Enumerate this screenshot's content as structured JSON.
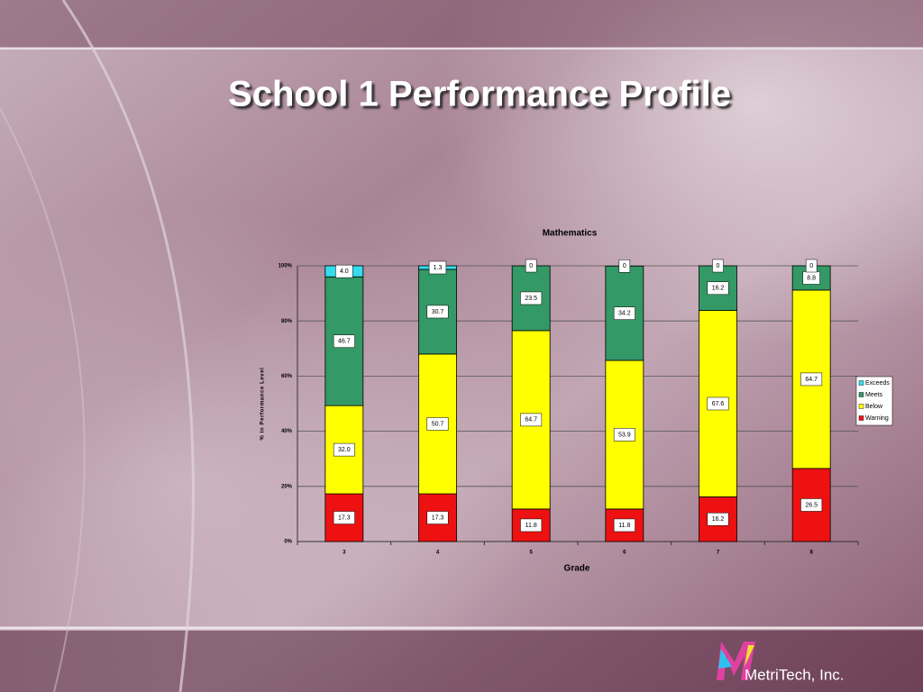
{
  "slide": {
    "title": "School 1 Performance Profile",
    "logo": "MetriTech, Inc."
  },
  "chart_data": {
    "type": "stacked_bar",
    "title": "Mathematics",
    "x_label": "Grade",
    "y_label": "% in Performance Level",
    "categories": [
      "3",
      "4",
      "5",
      "6",
      "7",
      "8"
    ],
    "series": [
      {
        "name": "Warning",
        "color": "#ee1111",
        "values": [
          17.3,
          17.3,
          11.8,
          11.8,
          16.2,
          26.5
        ],
        "value_labels": [
          "17.3",
          "17.3",
          "11.8",
          "11.8",
          "16.2",
          "26.5"
        ]
      },
      {
        "name": "Below",
        "color": "#ffff00",
        "values": [
          32.0,
          50.7,
          64.7,
          53.9,
          67.6,
          64.7
        ],
        "value_labels": [
          "32.0",
          "50.7",
          "64.7",
          "53.9",
          "67.6",
          "64.7"
        ]
      },
      {
        "name": "Meets",
        "color": "#339966",
        "values": [
          46.7,
          30.7,
          23.5,
          34.2,
          16.2,
          8.8
        ],
        "value_labels": [
          "46.7",
          "30.7",
          "23.5",
          "34.2",
          "16.2",
          "8.8"
        ]
      },
      {
        "name": "Exceeds",
        "color": "#33ddee",
        "values": [
          4.0,
          1.3,
          0,
          0,
          0,
          0
        ],
        "value_labels": [
          "4.0",
          "1.3",
          "0",
          "0",
          "0",
          "0"
        ]
      }
    ],
    "ylim": [
      0,
      100
    ],
    "yticks": [
      {
        "value": 0,
        "label": "0%"
      },
      {
        "value": 20,
        "label": "20%"
      },
      {
        "value": 40,
        "label": "40%"
      },
      {
        "value": 60,
        "label": "60%"
      },
      {
        "value": 80,
        "label": "80%"
      },
      {
        "value": 100,
        "label": "100%"
      }
    ],
    "grid": true,
    "legend": "right"
  }
}
